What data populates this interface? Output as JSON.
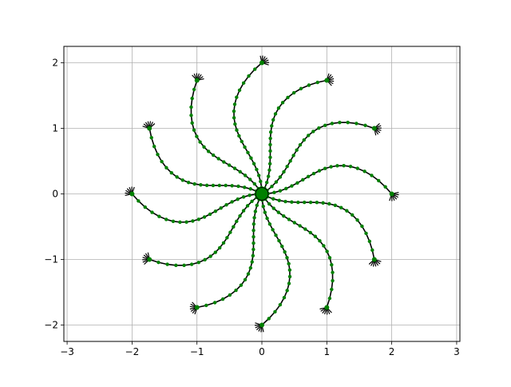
{
  "chart_data": {
    "type": "line",
    "title": "",
    "xlabel": "",
    "ylabel": "",
    "xlim": [
      -3.05,
      3.05
    ],
    "ylim": [
      -2.25,
      2.25
    ],
    "grid": true,
    "xticks": [
      -3,
      -2,
      -1,
      0,
      1,
      2,
      3
    ],
    "yticks": [
      -2,
      -1,
      0,
      1,
      2
    ],
    "xtick_labels": [
      "−3",
      "−2",
      "−1",
      "0",
      "1",
      "2",
      "3"
    ],
    "ytick_labels": [
      "−2",
      "−1",
      "0",
      "1",
      "2"
    ],
    "arms": {
      "count": 12,
      "radius": 2.0,
      "curl": 0.38,
      "point_color": "#008000",
      "line_color": "#000000",
      "tip_glyph": "black arrow fan at each arm tip",
      "points_per_arm": 21
    },
    "center_marker": {
      "x": 0,
      "y": 0,
      "color": "#008000"
    }
  }
}
